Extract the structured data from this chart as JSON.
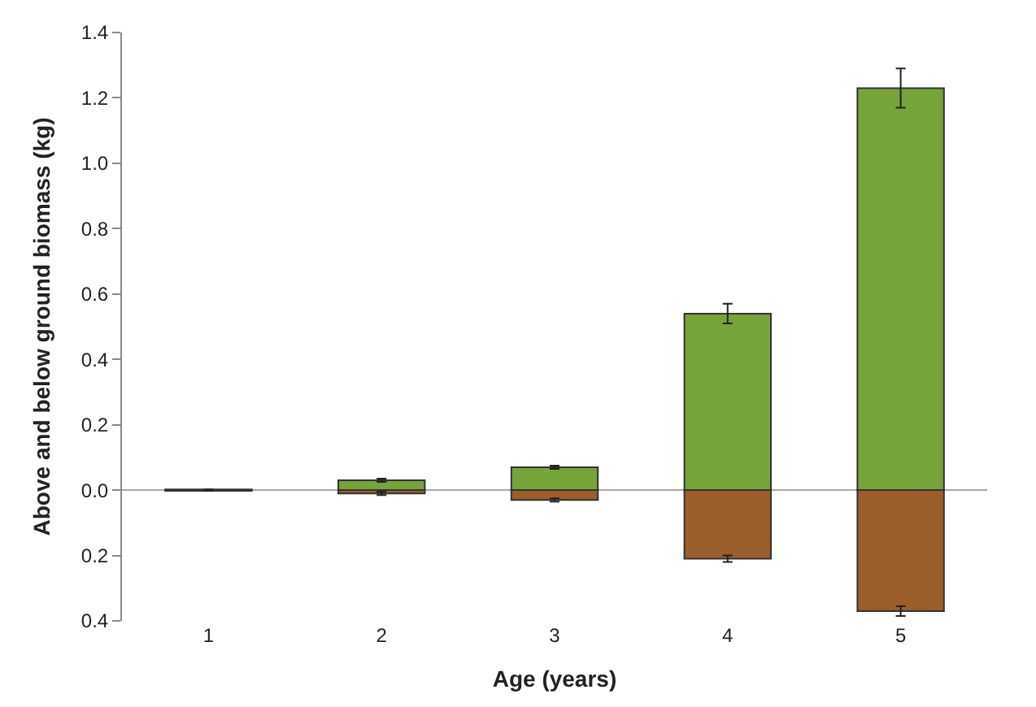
{
  "chart_data": {
    "type": "bar",
    "stacked": true,
    "xlabel": "Age (years)",
    "ylabel": "Above and below ground biomass (kg)",
    "categories": [
      "1",
      "2",
      "3",
      "4",
      "5"
    ],
    "series": [
      {
        "color": "#76a33a",
        "values": [
          0.002,
          0.03,
          0.07,
          0.54,
          1.23
        ],
        "errors": [
          null,
          0.005,
          0.005,
          0.03,
          0.06
        ]
      },
      {
        "color": "#9c5e2a",
        "values": [
          -0.002,
          -0.01,
          -0.03,
          -0.21,
          -0.37
        ],
        "errors": [
          null,
          0.005,
          0.005,
          0.01,
          0.015
        ]
      }
    ],
    "ylim": [
      -0.4,
      1.4
    ],
    "yticks": [
      {
        "value": -0.4,
        "label": "0.4"
      },
      {
        "value": -0.2,
        "label": "0.2"
      },
      {
        "value": 0,
        "label": "0.0"
      },
      0.2,
      0.4,
      0.6,
      0.8,
      {
        "value": 1,
        "label": "1.0"
      },
      1.2,
      1.4
    ],
    "ref_lines": [
      {
        "axis": "y",
        "value": 0,
        "color": "#aaaaaa"
      }
    ],
    "grid": false,
    "legend": false
  }
}
